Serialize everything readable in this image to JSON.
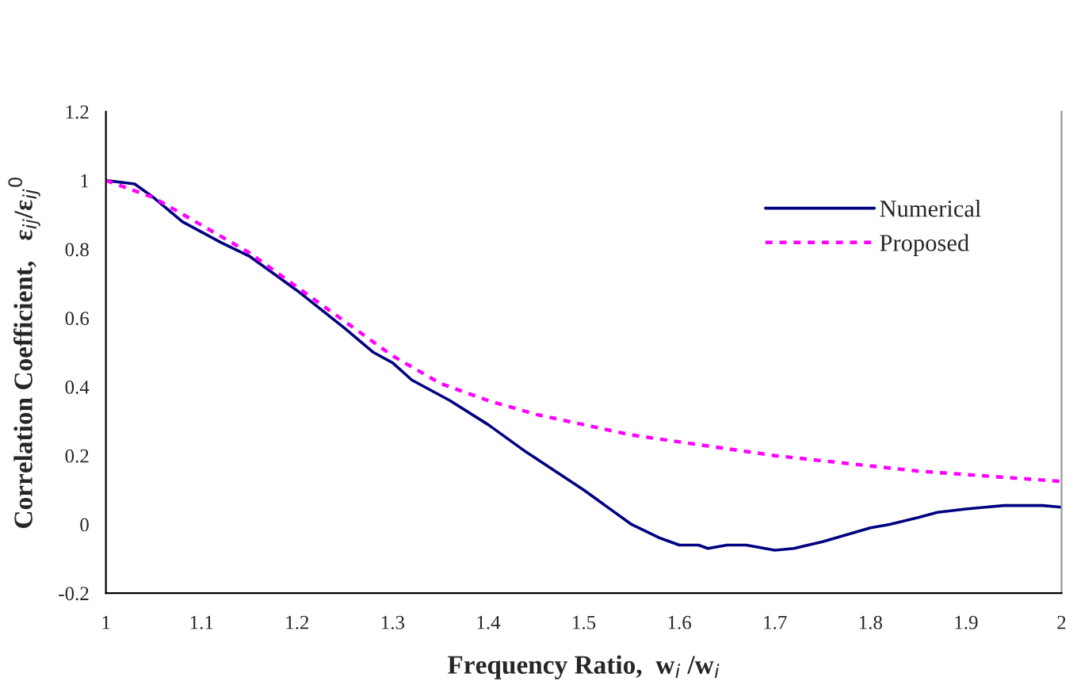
{
  "chart_data": {
    "type": "line",
    "xlabel": "Frequency Ratio,  w$_{i}$ /w$_{i}$",
    "ylabel": "Correlation Coefficient,   ε$_{ij}$/ε$_{ij}$$^{0}$",
    "xlim": [
      1,
      2
    ],
    "ylim": [
      -0.2,
      1.2
    ],
    "xticks": [
      1,
      1.1,
      1.2,
      1.3,
      1.4,
      1.5,
      1.6,
      1.7,
      1.8,
      1.9,
      2
    ],
    "yticks": [
      -0.2,
      0,
      0.2,
      0.4,
      0.6,
      0.8,
      1,
      1.2
    ],
    "grid": false,
    "legend": "top right",
    "series": [
      {
        "name": "Numerical",
        "color": "#000080",
        "line_style": "solid",
        "x": [
          1.0,
          1.03,
          1.05,
          1.08,
          1.1,
          1.12,
          1.15,
          1.18,
          1.2,
          1.25,
          1.28,
          1.3,
          1.32,
          1.36,
          1.4,
          1.44,
          1.5,
          1.55,
          1.58,
          1.6,
          1.62,
          1.63,
          1.65,
          1.67,
          1.7,
          1.72,
          1.75,
          1.8,
          1.82,
          1.85,
          1.87,
          1.9,
          1.92,
          1.94,
          1.98,
          2.0
        ],
        "values": [
          1.0,
          0.99,
          0.95,
          0.88,
          0.85,
          0.82,
          0.78,
          0.72,
          0.68,
          0.57,
          0.5,
          0.47,
          0.42,
          0.36,
          0.29,
          0.21,
          0.1,
          0.0,
          -0.04,
          -0.06,
          -0.06,
          -0.07,
          -0.06,
          -0.06,
          -0.075,
          -0.07,
          -0.05,
          -0.01,
          0.0,
          0.02,
          0.035,
          0.045,
          0.05,
          0.055,
          0.055,
          0.05
        ]
      },
      {
        "name": "Proposed",
        "color": "#ff00ff",
        "line_style": "dotted",
        "x": [
          1.0,
          1.05,
          1.1,
          1.15,
          1.2,
          1.25,
          1.3,
          1.35,
          1.4,
          1.45,
          1.5,
          1.55,
          1.6,
          1.65,
          1.7,
          1.75,
          1.8,
          1.85,
          1.9,
          1.95,
          2.0
        ],
        "values": [
          1.0,
          0.95,
          0.87,
          0.79,
          0.69,
          0.59,
          0.49,
          0.41,
          0.36,
          0.32,
          0.29,
          0.26,
          0.24,
          0.22,
          0.2,
          0.185,
          0.17,
          0.155,
          0.145,
          0.135,
          0.125
        ]
      }
    ]
  }
}
